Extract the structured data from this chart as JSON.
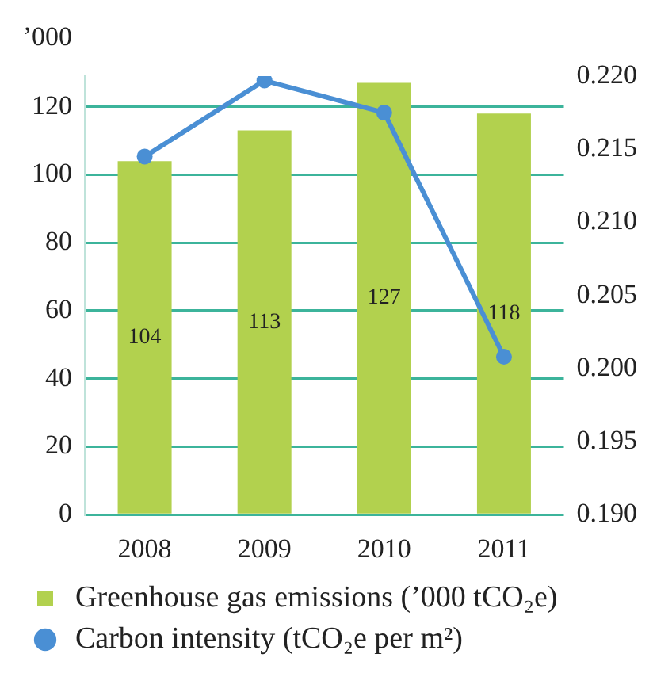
{
  "chart_data": {
    "type": "bar",
    "categories": [
      "2008",
      "2009",
      "2010",
      "2011"
    ],
    "series": [
      {
        "name": "Greenhouse gas emissions (’000 tCO₂e)",
        "color": "#b2d14e",
        "values": [
          104,
          113,
          127,
          118
        ],
        "value_labels": [
          "104",
          "113",
          "127",
          "118"
        ]
      },
      {
        "name": "Carbon intensity (tCO₂e per m²)",
        "type": "line",
        "axis": "y2",
        "color": "#4a8fd4",
        "values": [
          0.2145,
          0.2197,
          0.2175,
          0.2008
        ]
      }
    ],
    "ylabel": "’000",
    "ylim": [
      0,
      129
    ],
    "yticks": [
      0,
      20,
      40,
      60,
      80,
      100,
      120
    ],
    "y2lim": [
      0.19,
      0.22
    ],
    "y2ticks": [
      {
        "value": 0.19,
        "label": "0.190"
      },
      0.195,
      {
        "value": 0.2,
        "label": "0.200"
      },
      0.205,
      {
        "value": 0.21,
        "label": "0.210"
      },
      0.215,
      {
        "value": 0.22,
        "label": "0.220"
      }
    ],
    "grid": "y",
    "legend": "bottom",
    "marker": "circle",
    "line_style": "solid"
  }
}
